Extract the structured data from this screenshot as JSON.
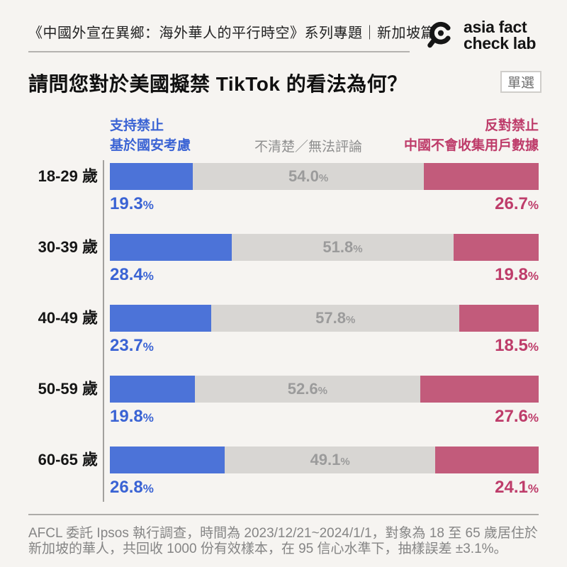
{
  "colors": {
    "support_bar": "#4C73D8",
    "support_text": "#3A63D4",
    "unclear_bar": "#D8D6D3",
    "unclear_text": "#9B9B9B",
    "oppose_bar": "#C25B7B",
    "oppose_text": "#BE3C6A",
    "background": "#F6F4F1"
  },
  "header": {
    "series_title": "《中國外宣在異鄉：海外華人的平行時空》系列專題｜新加坡篇",
    "logo_line1": "asia fact",
    "logo_line2": "check lab"
  },
  "question": {
    "title": "請問您對於美國擬禁 TikTok 的看法為何？",
    "badge": "單選"
  },
  "legend": {
    "support_line1": "支持禁止",
    "support_line2": "基於國安考慮",
    "unclear": "不清楚／無法評論",
    "oppose_line1": "反對禁止",
    "oppose_line2": "中國不會收集用戶數據"
  },
  "percent_symbol": "%",
  "chart_data": {
    "type": "bar",
    "orientation": "horizontal-stacked",
    "title": "請問您對於美國擬禁 TikTok 的看法為何？",
    "value_unit": "%",
    "xlim": [
      0,
      100
    ],
    "categories": [
      "18-29 歲",
      "30-39 歲",
      "40-49 歲",
      "50-59 歲",
      "60-65 歲"
    ],
    "series": [
      {
        "name": "支持禁止（基於國安考慮）",
        "values": [
          19.3,
          28.4,
          23.7,
          19.8,
          26.8
        ]
      },
      {
        "name": "不清楚／無法評論",
        "values": [
          54.0,
          51.8,
          57.8,
          52.6,
          49.1
        ]
      },
      {
        "name": "反對禁止（中國不會收集用戶數據）",
        "values": [
          26.7,
          19.8,
          18.5,
          27.6,
          24.1
        ]
      }
    ],
    "rows": [
      {
        "age": "18-29 歲",
        "support": "19.3",
        "unclear": "54.0",
        "oppose": "26.7"
      },
      {
        "age": "30-39 歲",
        "support": "28.4",
        "unclear": "51.8",
        "oppose": "19.8"
      },
      {
        "age": "40-49 歲",
        "support": "23.7",
        "unclear": "57.8",
        "oppose": "18.5"
      },
      {
        "age": "50-59 歲",
        "support": "19.8",
        "unclear": "52.6",
        "oppose": "27.6"
      },
      {
        "age": "60-65 歲",
        "support": "26.8",
        "unclear": "49.1",
        "oppose": "24.1"
      }
    ]
  },
  "footer": {
    "line1": "AFCL 委託 Ipsos 執行調查，時間為 2023/12/21~2024/1/1，對象為 18 至 65 歲居住於",
    "line2": "新加坡的華人，共回收 1000 份有效樣本，在 95 信心水準下，抽樣誤差 ±3.1%。"
  }
}
